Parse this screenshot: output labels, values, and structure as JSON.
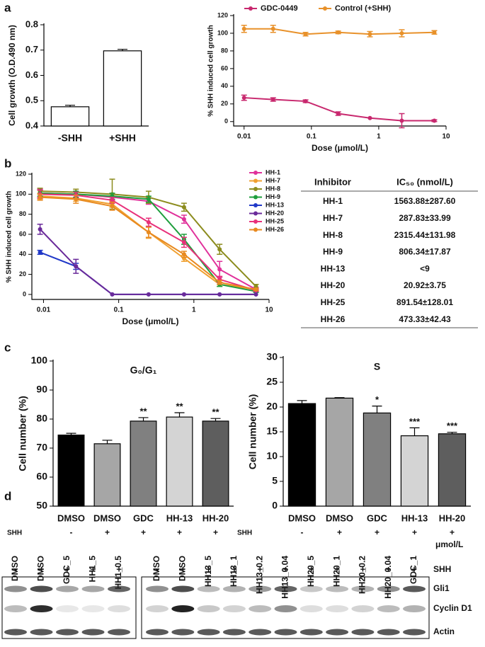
{
  "panels": [
    "a",
    "b",
    "c",
    "d"
  ],
  "chart_data": [
    {
      "type": "bar",
      "ylabel": "Cell growth (O.D.490 nm)",
      "categories": [
        "-SHH",
        "+SHH"
      ],
      "values": [
        0.476,
        0.697
      ],
      "errors": [
        0.006,
        0.006
      ],
      "colors": [
        "#ffffff",
        "#ffffff"
      ],
      "edgecolor": "#000000",
      "ylim": [
        0.4,
        0.8
      ],
      "yticks": [
        0.4,
        0.5,
        0.6,
        0.7,
        0.8
      ]
    },
    {
      "type": "line",
      "xlog": true,
      "xlabel": "Dose (μmol/L)",
      "ylabel": "% SHH induced cell growth",
      "x": [
        0.01,
        0.027,
        0.082,
        0.25,
        0.74,
        2.2,
        6.7
      ],
      "xlim": [
        0.007,
        10
      ],
      "xticks": [
        0.01,
        0.1,
        1,
        10
      ],
      "ylim": [
        -5,
        120
      ],
      "yticks": [
        0,
        20,
        40,
        60,
        80,
        100,
        120
      ],
      "series": [
        {
          "name": "GDC-0449",
          "color": "#c8286e",
          "values": [
            27,
            25,
            23,
            9,
            4,
            1,
            1
          ],
          "errors": [
            3,
            2,
            1.5,
            2,
            null,
            8,
            1
          ]
        },
        {
          "name": "Control (+SHH)",
          "color": "#e8912a",
          "values": [
            105,
            105,
            99,
            101,
            99,
            100,
            101
          ],
          "errors": [
            4,
            4,
            2,
            1.5,
            3,
            4,
            2
          ]
        }
      ]
    },
    {
      "type": "line",
      "xlog": true,
      "xlabel": "Dose (μmol/L)",
      "ylabel": "% SHH induced cell growth",
      "x": [
        0.009,
        0.027,
        0.082,
        0.25,
        0.74,
        2.2,
        6.7
      ],
      "xlim": [
        0.007,
        10
      ],
      "xticks": [
        0.01,
        0.1,
        1,
        10
      ],
      "ylim": [
        -5,
        120
      ],
      "yticks": [
        0,
        20,
        40,
        60,
        80,
        100,
        120
      ],
      "series": [
        {
          "name": "HH-1",
          "color": "#e0309a",
          "values": [
            101,
            100,
            97,
            93,
            75,
            25,
            5
          ],
          "errors": [
            4,
            3,
            3,
            3,
            4,
            8,
            2
          ]
        },
        {
          "name": "HH-7",
          "color": "#f0a030",
          "values": [
            98,
            96,
            90,
            62,
            36,
            10,
            5
          ],
          "errors": [
            3,
            3,
            3,
            6,
            3,
            2,
            1
          ]
        },
        {
          "name": "HH-8",
          "color": "#8c8c1e",
          "values": [
            103,
            102,
            100,
            97,
            87,
            45,
            8
          ],
          "errors": [
            3,
            3,
            15,
            6,
            4,
            5,
            2
          ]
        },
        {
          "name": "HH-9",
          "color": "#1e9e3c",
          "values": [
            101,
            100,
            98,
            95,
            55,
            10,
            3
          ],
          "errors": [
            3,
            3,
            3,
            3,
            5,
            2,
            1
          ]
        },
        {
          "name": "HH-13",
          "color": "#2038c8",
          "values": [
            42,
            28,
            0,
            0,
            0,
            0,
            0
          ],
          "errors": [
            2,
            3,
            null,
            null,
            null,
            null,
            null
          ]
        },
        {
          "name": "HH-20",
          "color": "#6a2a9a",
          "values": [
            65,
            28,
            0,
            0,
            0,
            0,
            0
          ],
          "errors": [
            5,
            7,
            null,
            null,
            null,
            null,
            null
          ]
        },
        {
          "name": "HH-25",
          "color": "#e8307a",
          "values": [
            100,
            99,
            94,
            72,
            52,
            15,
            4
          ],
          "errors": [
            4,
            3,
            3,
            4,
            5,
            3,
            1
          ]
        },
        {
          "name": "HH-26",
          "color": "#e88a20",
          "values": [
            97,
            95,
            88,
            62,
            40,
            12,
            5
          ],
          "errors": [
            3,
            4,
            4,
            5,
            3,
            2,
            1
          ]
        }
      ]
    },
    {
      "type": "bar",
      "title": "G₀/G₁",
      "ylabel": "Cell number (%)",
      "categories": [
        "DMSO",
        "DMSO",
        "GDC",
        "HH-13",
        "HH-20"
      ],
      "values": [
        74.5,
        71.5,
        79.3,
        80.7,
        79.3
      ],
      "errors": [
        0.6,
        1.2,
        1.2,
        1.5,
        0.9
      ],
      "colors": [
        "#000000",
        "#a6a6a6",
        "#808080",
        "#d4d4d4",
        "#5e5e5e"
      ],
      "edgecolor": "#000000",
      "annotations": [
        null,
        null,
        "**",
        "**",
        "**"
      ],
      "row_label": "SHH",
      "row_values": [
        "-",
        "+",
        "+",
        "+",
        "+"
      ],
      "ylim": [
        50,
        100
      ],
      "yticks": [
        50,
        60,
        70,
        80,
        90,
        100
      ]
    },
    {
      "type": "bar",
      "title": "S",
      "ylabel": "Cell number (%)",
      "categories": [
        "DMSO",
        "DMSO",
        "GDC",
        "HH-13",
        "HH-20"
      ],
      "values": [
        20.7,
        21.8,
        18.8,
        14.2,
        14.6
      ],
      "errors": [
        0.6,
        0.1,
        1.4,
        1.6,
        0.3
      ],
      "colors": [
        "#000000",
        "#a6a6a6",
        "#808080",
        "#d4d4d4",
        "#5e5e5e"
      ],
      "edgecolor": "#000000",
      "annotations": [
        null,
        null,
        "*",
        "***",
        "***"
      ],
      "row_label": "SHH",
      "row_values": [
        "-",
        "+",
        "+",
        "+",
        "+"
      ],
      "ylim": [
        0,
        30
      ],
      "yticks": [
        0,
        5,
        10,
        15,
        20,
        25,
        30
      ]
    }
  ],
  "table": {
    "header": [
      "Inhibitor",
      "IC₅₀ (nmol/L)"
    ],
    "rows": [
      [
        "HH-1",
        "1563.88±287.60"
      ],
      [
        "HH-7",
        "287.83±33.99"
      ],
      [
        "HH-8",
        "2315.44±131.98"
      ],
      [
        "HH-9",
        "806.34±17.87"
      ],
      [
        "HH-13",
        "<9"
      ],
      [
        "HH-20",
        "20.92±3.75"
      ],
      [
        "HH-25",
        "891.54±128.01"
      ],
      [
        "HH-26",
        "473.33±42.43"
      ]
    ]
  },
  "blot": {
    "unit": "μmol/L",
    "treatment_label": "SHH",
    "rows": [
      "Gli1",
      "Cyclin D1",
      "Actin"
    ],
    "groups": [
      {
        "lanes": [
          "DMSO",
          "DMSO",
          "GDC_5",
          "HH1_5",
          "HH1_0.5"
        ],
        "shh": [
          "-",
          "+",
          "+",
          "+",
          "+"
        ]
      },
      {
        "lanes": [
          "DMSO",
          "DMSO",
          "HH13_5",
          "HH13_1",
          "HH13_0.2",
          "HH13_0.04",
          "HH20_5",
          "HH20_1",
          "HH20_0.2",
          "HH20_0.04",
          "GDC_1"
        ],
        "shh": [
          "-",
          "+",
          "+",
          "+",
          "+",
          "+",
          "+",
          "+",
          "+",
          "+",
          "+"
        ]
      }
    ]
  }
}
